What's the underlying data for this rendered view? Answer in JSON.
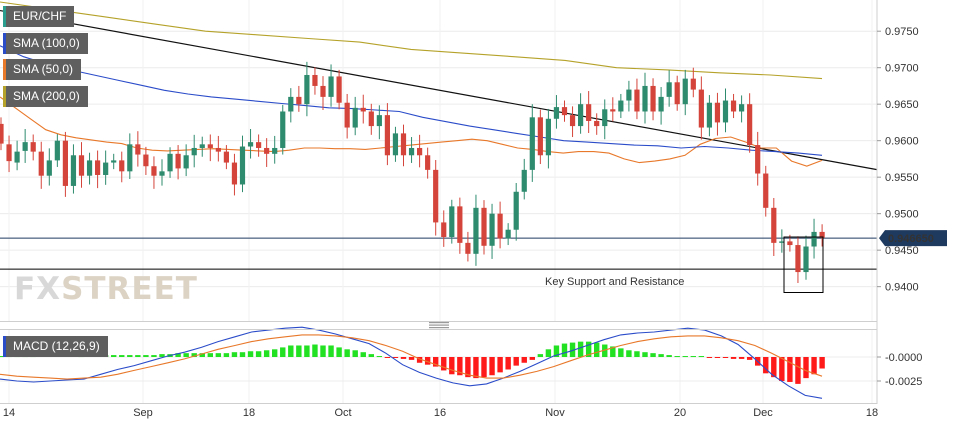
{
  "chart_data": [
    {
      "type": "candlestick",
      "symbol": "EUR/CHF",
      "current_price": "0.946650",
      "yticks": [
        "0.9750",
        "0.9700",
        "0.9650",
        "0.9600",
        "0.9550",
        "0.9500",
        "0.9450",
        "0.9400"
      ],
      "ylim": [
        0.9355,
        0.979
      ],
      "xticks": [
        "14",
        "Sep",
        "18",
        "Oct",
        "16",
        "Nov",
        "20",
        "Dec",
        "18"
      ],
      "indicators": [
        {
          "name": "SMA (100,0)",
          "color": "#2b4cc9"
        },
        {
          "name": "SMA (50,0)",
          "color": "#e8782a"
        },
        {
          "name": "SMA (200,0)",
          "color": "#b5a22a"
        }
      ],
      "annotation": "Key Support and Resistance",
      "support_level": 0.9424,
      "price_level_line": 0.94665,
      "trendline": {
        "from": [
          0,
          0.9778
        ],
        "to": [
          109,
          0.956
        ]
      },
      "candles": [
        [
          0.9623,
          0.9596
        ],
        [
          0.9595,
          0.9572
        ],
        [
          0.957,
          0.9585
        ],
        [
          0.9586,
          0.9598
        ],
        [
          0.9598,
          0.9585
        ],
        [
          0.9585,
          0.9552
        ],
        [
          0.9552,
          0.9573
        ],
        [
          0.9573,
          0.96
        ],
        [
          0.96,
          0.9538
        ],
        [
          0.9538,
          0.958
        ],
        [
          0.958,
          0.9552
        ],
        [
          0.9552,
          0.9573
        ],
        [
          0.9573,
          0.9553
        ],
        [
          0.9553,
          0.957
        ],
        [
          0.957,
          0.9573
        ],
        [
          0.9573,
          0.9558
        ],
        [
          0.9558,
          0.9595
        ],
        [
          0.9595,
          0.9581
        ],
        [
          0.9581,
          0.9565
        ],
        [
          0.9565,
          0.9552
        ],
        [
          0.9552,
          0.9558
        ],
        [
          0.9558,
          0.9582
        ],
        [
          0.9582,
          0.9562
        ],
        [
          0.9562,
          0.958
        ],
        [
          0.958,
          0.959
        ],
        [
          0.959,
          0.9595
        ],
        [
          0.9595,
          0.959
        ],
        [
          0.959,
          0.9585
        ],
        [
          0.9585,
          0.957
        ],
        [
          0.957,
          0.954
        ],
        [
          0.954,
          0.9592
        ],
        [
          0.9592,
          0.9598
        ],
        [
          0.9598,
          0.959
        ],
        [
          0.959,
          0.9582
        ],
        [
          0.9582,
          0.959
        ],
        [
          0.959,
          0.964
        ],
        [
          0.964,
          0.966
        ],
        [
          0.966,
          0.965
        ],
        [
          0.965,
          0.969
        ],
        [
          0.969,
          0.9675
        ],
        [
          0.9675,
          0.966
        ],
        [
          0.966,
          0.9688
        ],
        [
          0.9688,
          0.9652
        ],
        [
          0.9652,
          0.9618
        ],
        [
          0.9618,
          0.9645
        ],
        [
          0.9645,
          0.964
        ],
        [
          0.964,
          0.962
        ],
        [
          0.962,
          0.9635
        ],
        [
          0.9635,
          0.958
        ],
        [
          0.958,
          0.961
        ],
        [
          0.961,
          0.958
        ],
        [
          0.958,
          0.959
        ],
        [
          0.959,
          0.958
        ],
        [
          0.958,
          0.956
        ],
        [
          0.956,
          0.9488
        ],
        [
          0.9488,
          0.9468
        ],
        [
          0.9468,
          0.951
        ],
        [
          0.951,
          0.946
        ],
        [
          0.946,
          0.9445
        ],
        [
          0.9445,
          0.9508
        ],
        [
          0.9508,
          0.9456
        ],
        [
          0.9456,
          0.95
        ],
        [
          0.95,
          0.9466
        ],
        [
          0.9466,
          0.9478
        ],
        [
          0.9478,
          0.953
        ],
        [
          0.953,
          0.956
        ],
        [
          0.956,
          0.9632
        ],
        [
          0.9632,
          0.958
        ],
        [
          0.958,
          0.963
        ],
        [
          0.963,
          0.9646
        ],
        [
          0.9646,
          0.9635
        ],
        [
          0.9635,
          0.962
        ],
        [
          0.962,
          0.965
        ],
        [
          0.965,
          0.9627
        ],
        [
          0.9627,
          0.962
        ],
        [
          0.962,
          0.9643
        ],
        [
          0.9643,
          0.964
        ],
        [
          0.964,
          0.9655
        ],
        [
          0.9655,
          0.967
        ],
        [
          0.967,
          0.964
        ],
        [
          0.964,
          0.9675
        ],
        [
          0.9675,
          0.964
        ],
        [
          0.964,
          0.966
        ],
        [
          0.966,
          0.968
        ],
        [
          0.968,
          0.965
        ],
        [
          0.965,
          0.9685
        ],
        [
          0.9685,
          0.967
        ],
        [
          0.967,
          0.9618
        ],
        [
          0.9618,
          0.9652
        ],
        [
          0.9652,
          0.9625
        ],
        [
          0.9625,
          0.9655
        ],
        [
          0.9655,
          0.964
        ],
        [
          0.964,
          0.965
        ],
        [
          0.965,
          0.9594
        ],
        [
          0.9594,
          0.9555
        ],
        [
          0.9555,
          0.9508
        ],
        [
          0.9508,
          0.946
        ],
        [
          0.946,
          0.9462
        ],
        [
          0.9462,
          0.9457
        ],
        [
          0.9457,
          0.942
        ],
        [
          0.942,
          0.9455
        ],
        [
          0.9455,
          0.9475
        ],
        [
          0.9475,
          0.9467
        ]
      ],
      "sma50": [
        0.966,
        0.9645,
        0.963,
        0.9615,
        0.9608,
        0.9604,
        0.9601,
        0.9598,
        0.9596,
        0.959,
        0.9587,
        0.9586,
        0.9587,
        0.9588,
        0.9589,
        0.9588,
        0.9587,
        0.9586,
        0.9585,
        0.9587,
        0.959,
        0.959,
        0.9589,
        0.9589,
        0.9588,
        0.959,
        0.9592,
        0.9594,
        0.9596,
        0.9598,
        0.96,
        0.9602,
        0.96,
        0.9595,
        0.959,
        0.9588,
        0.9585,
        0.9583,
        0.9585,
        0.9585,
        0.9583,
        0.9575,
        0.957,
        0.9572,
        0.9575,
        0.958,
        0.9595,
        0.9603,
        0.9605,
        0.9598,
        0.959,
        0.959,
        0.9572,
        0.9565,
        0.9573
      ],
      "sma100": [
        0.973,
        0.9715,
        0.9705,
        0.9697,
        0.969,
        0.9683,
        0.9676,
        0.9669,
        0.9664,
        0.966,
        0.9657,
        0.9654,
        0.9651,
        0.9648,
        0.9645,
        0.9644,
        0.9642,
        0.964,
        0.9632,
        0.9626,
        0.962,
        0.9615,
        0.961,
        0.9605,
        0.96,
        0.9598,
        0.9596,
        0.9594,
        0.9593,
        0.959,
        0.9592,
        0.959,
        0.9587,
        0.9585,
        0.9583,
        0.958
      ],
      "sma200": [
        0.979,
        0.978,
        0.977,
        0.976,
        0.975,
        0.9745,
        0.974,
        0.9735,
        0.9725,
        0.972,
        0.9715,
        0.971,
        0.97,
        0.9697,
        0.9693,
        0.969,
        0.9685
      ]
    },
    {
      "type": "histogram",
      "indicator": "MACD (12,26,9)",
      "yticks": [
        "-0.0000",
        "-0.0025"
      ],
      "ylim": [
        -0.0043,
        0.0034
      ],
      "histogram": [
        0.0001,
        0.0001,
        0.0001,
        0.0001,
        0.0001,
        0.0002,
        0.0002,
        0.0002,
        0.0002,
        0.0002,
        0.0001,
        0.0002,
        0.0002,
        0.0002,
        0.0002,
        0.0002,
        0.0002,
        0.0002,
        0.0002,
        0.0002,
        0.0003,
        0.0003,
        0.0004,
        0.0004,
        0.0004,
        0.0004,
        0.0004,
        0.0004,
        0.0004,
        0.0005,
        0.0005,
        0.0006,
        0.0006,
        0.0007,
        0.0008,
        0.001,
        0.0012,
        0.0012,
        0.0012,
        0.0013,
        0.0012,
        0.0012,
        0.001,
        0.0008,
        0.0007,
        0.0005,
        0.0003,
        0.0001,
        -0.0001,
        -0.0001,
        -0.0002,
        -0.0003,
        -0.0006,
        -0.0008,
        -0.001,
        -0.0014,
        -0.0018,
        -0.0019,
        -0.0021,
        -0.0022,
        -0.0021,
        -0.0019,
        -0.0016,
        -0.0013,
        -0.0009,
        -0.0006,
        -0.0003,
        0.0003,
        0.0008,
        0.0012,
        0.0014,
        0.0015,
        0.0016,
        0.0016,
        0.0015,
        0.0013,
        0.0011,
        0.0009,
        0.0007,
        0.0006,
        0.0005,
        0.0004,
        0.0003,
        0.0002,
        0.0001,
        0.0001,
        0.0001,
        0.0001,
        -0.0001,
        -0.0001,
        -0.0001,
        -0.0002,
        -0.0002,
        -0.0003,
        -0.0009,
        -0.0017,
        -0.0021,
        -0.0025,
        -0.0026,
        -0.0028,
        -0.0022,
        -0.0018,
        -0.0012
      ],
      "macd": [
        -0.0023,
        -0.0025,
        -0.0026,
        -0.0025,
        -0.0024,
        -0.0023,
        -0.0018,
        -0.0013,
        -0.0009,
        -0.0004,
        0.0001,
        0.0005,
        0.001,
        0.0016,
        0.0021,
        0.0026,
        0.0028,
        0.003,
        0.0031,
        0.0028,
        0.0024,
        0.0019,
        0.0014,
        0.0004,
        -0.0008,
        -0.0016,
        -0.0022,
        -0.0027,
        -0.003,
        -0.0028,
        -0.0022,
        -0.0015,
        -0.0007,
        0.0001,
        0.0006,
        0.0012,
        0.0018,
        0.0023,
        0.0025,
        0.0026,
        0.0028,
        0.003,
        0.0028,
        0.0022,
        0.0013,
        -0.0002,
        -0.0018,
        -0.003,
        -0.004,
        -0.0043
      ],
      "signal": [
        -0.0018,
        -0.002,
        -0.0021,
        -0.0022,
        -0.0023,
        -0.0022,
        -0.0021,
        -0.0018,
        -0.0014,
        -0.001,
        -0.0006,
        -0.0002,
        0.0003,
        0.0008,
        0.0012,
        0.0016,
        0.0019,
        0.0021,
        0.0023,
        0.0023,
        0.0022,
        0.002,
        0.0017,
        0.0012,
        0.0006,
        -0.0002,
        -0.0008,
        -0.0014,
        -0.0019,
        -0.0022,
        -0.0022,
        -0.0019,
        -0.0015,
        -0.001,
        -0.0004,
        0.0002,
        0.0007,
        0.0012,
        0.0016,
        0.0019,
        0.0021,
        0.0022,
        0.0022,
        0.002,
        0.0017,
        0.0012,
        0.0004,
        -0.0005,
        -0.0014,
        -0.002
      ]
    }
  ]
}
